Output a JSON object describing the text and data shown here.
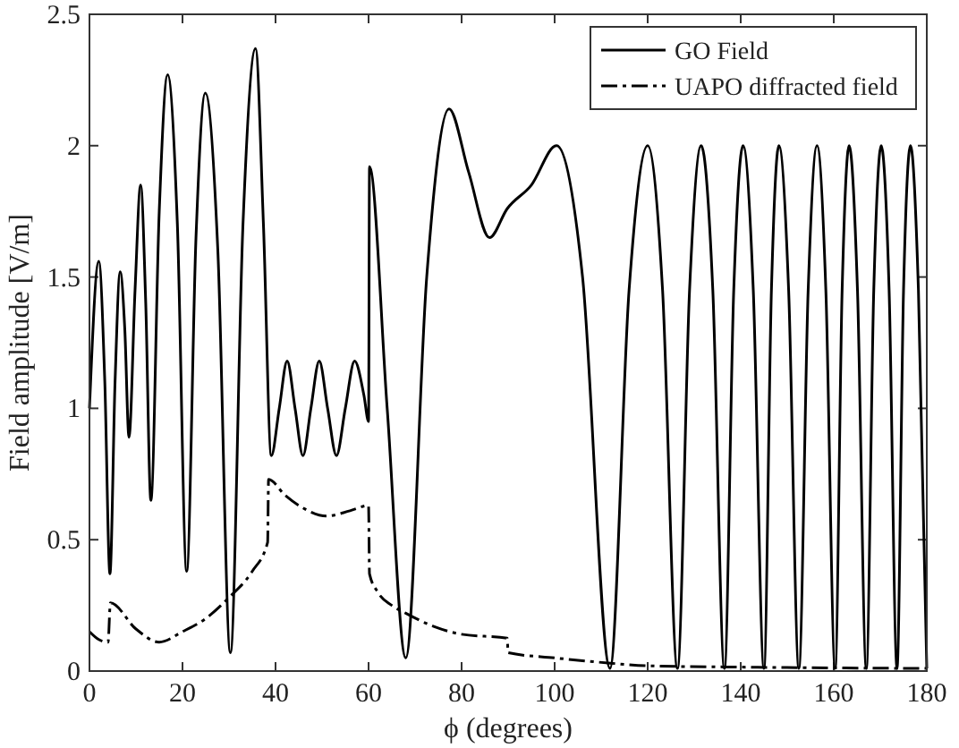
{
  "chart_data": {
    "type": "line",
    "xlabel": "ϕ (degrees)",
    "ylabel": "Field amplitude [V/m]",
    "xlim": [
      0,
      180
    ],
    "xticks": [
      0,
      20,
      40,
      60,
      80,
      100,
      120,
      140,
      160,
      180
    ],
    "ylim": [
      0,
      2.5
    ],
    "yticks": [
      0,
      0.5,
      1,
      1.5,
      2,
      2.5
    ],
    "grid": false,
    "legend": "top right",
    "marker": "none",
    "series": [
      {
        "name": "GO Field",
        "color": "#000000",
        "line_style": "solid",
        "x": [
          0,
          2,
          3.3,
          4.4,
          5.5,
          6.6,
          7.6,
          8.5,
          9.8,
          11,
          12.1,
          13.2,
          15,
          16.8,
          18.9,
          20.9,
          22.9,
          24.9,
          27.6,
          30.3,
          33,
          35.7,
          37.4,
          39.1,
          40.8,
          42.5,
          44.2,
          45.9,
          47.6,
          49.4,
          51.2,
          53.1,
          55,
          57,
          59,
          60,
          60.2,
          64,
          68,
          72.5,
          77.3,
          81.5,
          86,
          89.8,
          95,
          100.4,
          106,
          111.9,
          116,
          120,
          123.2,
          126.4,
          129,
          131.5,
          134,
          136.5,
          138.5,
          140.5,
          142.7,
          145,
          146.6,
          148.2,
          150.3,
          152.5,
          154.5,
          156.4,
          158.3,
          160.3,
          161.8,
          163.3,
          165.1,
          167,
          168.6,
          170.2,
          171.9,
          173.6,
          175,
          176.5,
          178.2,
          180
        ],
        "values": [
          1.0,
          1.56,
          1.1,
          0.37,
          1.1,
          1.52,
          1.3,
          0.89,
          1.45,
          1.85,
          1.4,
          0.65,
          1.75,
          2.27,
          1.7,
          0.38,
          1.65,
          2.2,
          1.6,
          0.07,
          1.7,
          2.37,
          1.7,
          0.82,
          1.0,
          1.18,
          1.0,
          0.82,
          1.0,
          1.18,
          1.0,
          0.82,
          1.0,
          1.18,
          1.05,
          0.95,
          1.92,
          1.0,
          0.05,
          1.5,
          2.14,
          1.9,
          1.65,
          1.76,
          1.85,
          2.0,
          1.5,
          0.01,
          1.45,
          2.0,
          1.45,
          0.01,
          1.45,
          2.0,
          1.45,
          0.01,
          1.45,
          2.0,
          1.45,
          0.01,
          1.45,
          2.0,
          1.45,
          0.01,
          1.45,
          2.0,
          1.45,
          0.01,
          1.45,
          2.0,
          1.45,
          0.01,
          1.45,
          2.0,
          1.45,
          0.01,
          1.45,
          2.0,
          1.45,
          0.01
        ]
      },
      {
        "name": "UAPO diffracted field",
        "color": "#000000",
        "line_style": "dashdot",
        "x": [
          0,
          2,
          4,
          4.5,
          10,
          15,
          20,
          25,
          30,
          35,
          38.3,
          38.5,
          42,
          46,
          51,
          56,
          60,
          60.2,
          62,
          65,
          68,
          74,
          80,
          89.8,
          90,
          100,
          112,
          120,
          140,
          160,
          180
        ],
        "values": [
          0.15,
          0.12,
          0.11,
          0.26,
          0.16,
          0.11,
          0.15,
          0.2,
          0.28,
          0.38,
          0.49,
          0.73,
          0.67,
          0.62,
          0.59,
          0.61,
          0.63,
          0.37,
          0.3,
          0.25,
          0.22,
          0.17,
          0.14,
          0.125,
          0.07,
          0.05,
          0.03,
          0.02,
          0.015,
          0.012,
          0.01
        ]
      }
    ]
  }
}
